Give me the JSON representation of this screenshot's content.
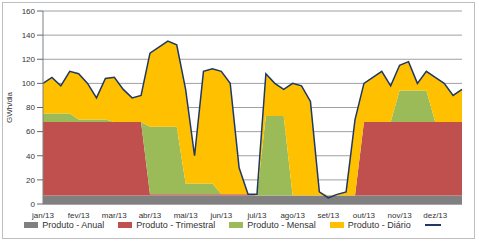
{
  "chart_data": {
    "type": "area",
    "y_label": "GWh/dia",
    "stacked": true,
    "grid": true,
    "legend": "bottom",
    "categories": [
      "jan/13",
      null,
      null,
      null,
      "fev/13",
      null,
      null,
      null,
      "mar/13",
      null,
      null,
      null,
      "abr/13",
      null,
      null,
      null,
      "mai/13",
      null,
      null,
      null,
      "jun/13",
      null,
      null,
      null,
      "jul/13",
      null,
      null,
      null,
      "ago/13",
      null,
      null,
      null,
      "set/13",
      null,
      null,
      null,
      "out/13",
      null,
      null,
      null,
      "nov/13",
      null,
      null,
      null,
      "dez/13",
      null,
      null,
      null
    ],
    "ylim": [
      0,
      160
    ],
    "yticks": [
      0,
      20,
      40,
      60,
      80,
      100,
      120,
      140,
      160
    ],
    "series": [
      {
        "name": "Produto - Anual",
        "color": "#808080",
        "type": "area",
        "values": [
          7,
          7,
          7,
          7,
          7,
          7,
          7,
          7,
          7,
          7,
          7,
          7,
          7,
          7,
          7,
          7,
          7,
          7,
          7,
          7,
          7,
          7,
          7,
          7,
          7,
          7,
          7,
          7,
          7,
          7,
          7,
          7,
          7,
          7,
          7,
          7,
          7,
          7,
          7,
          7,
          7,
          7,
          7,
          7,
          7,
          7,
          7,
          7
        ]
      },
      {
        "name": "Produto - Trimestral",
        "color": "#c0504d",
        "type": "area",
        "values": [
          61,
          61,
          61,
          61,
          61,
          61,
          61,
          61,
          61,
          61,
          61,
          61,
          1,
          1,
          1,
          1,
          1,
          1,
          1,
          1,
          1,
          1,
          1,
          1,
          0,
          0,
          0,
          0,
          0,
          0,
          0,
          0,
          0,
          0,
          0,
          0,
          61,
          61,
          61,
          61,
          61,
          61,
          61,
          61,
          61,
          61,
          61,
          61
        ]
      },
      {
        "name": "Produto - Mensal",
        "color": "#9bbb59",
        "type": "area",
        "values": [
          7,
          7,
          7,
          7,
          2,
          2,
          2,
          2,
          0,
          0,
          0,
          0,
          56,
          56,
          56,
          56,
          9,
          9,
          9,
          9,
          0,
          0,
          0,
          0,
          0,
          66,
          66,
          66,
          0,
          0,
          0,
          0,
          0,
          0,
          0,
          0,
          0,
          0,
          0,
          0,
          26,
          26,
          26,
          26,
          0,
          0,
          0,
          0
        ]
      },
      {
        "name": "Produto - Diário",
        "color": "#ffc000",
        "type": "area",
        "values": [
          25,
          30,
          23,
          35,
          38,
          30,
          18,
          34,
          37,
          27,
          20,
          22,
          61,
          66,
          71,
          68,
          78,
          23,
          93,
          95,
          102,
          92,
          22,
          0,
          1,
          35,
          27,
          22,
          93,
          91,
          78,
          3,
          0,
          1,
          3,
          63,
          32,
          37,
          42,
          30,
          21,
          24,
          6,
          16,
          37,
          32,
          22,
          27
        ]
      },
      {
        "color": "#1f3864",
        "type": "line",
        "values": [
          100,
          105,
          98,
          110,
          108,
          100,
          88,
          104,
          105,
          95,
          88,
          90,
          125,
          130,
          135,
          132,
          95,
          40,
          110,
          112,
          110,
          100,
          30,
          8,
          8,
          108,
          100,
          95,
          100,
          98,
          85,
          10,
          5,
          8,
          10,
          70,
          100,
          105,
          110,
          98,
          115,
          118,
          100,
          110,
          105,
          100,
          90,
          95
        ]
      }
    ]
  }
}
